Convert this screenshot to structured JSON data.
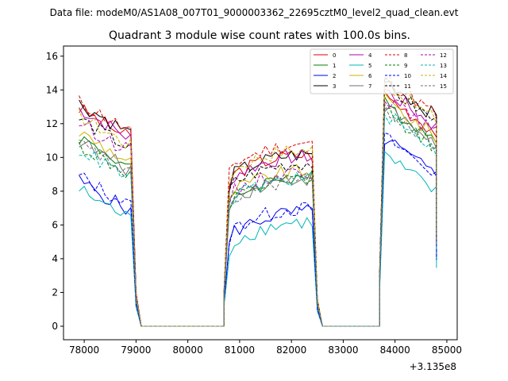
{
  "suptitle": "Data file: modeM0/AS1A08_007T01_9000003362_22695cztM0_level2_quad_clean.evt",
  "chart_data": {
    "type": "line",
    "title": "Quadrant 3 module wise count rates with 100.0s bins.",
    "xlabel": "",
    "ylabel": "",
    "x_offset_label": "+3.135e8",
    "xlim": [
      77600,
      85200
    ],
    "ylim": [
      -0.8,
      16.6
    ],
    "xticks": [
      78000,
      79000,
      80000,
      81000,
      82000,
      83000,
      84000,
      85000
    ],
    "xtick_labels": [
      "78000",
      "79000",
      "80000",
      "81000",
      "82000",
      "83000",
      "84000",
      "85000"
    ],
    "yticks": [
      0,
      2,
      4,
      6,
      8,
      10,
      12,
      14,
      16
    ],
    "ytick_labels": [
      "0",
      "2",
      "4",
      "6",
      "8",
      "10",
      "12",
      "14",
      "16"
    ],
    "grid": false,
    "legend_position": "top-right",
    "segments": [
      {
        "start": 77900,
        "end": 78900,
        "tail": [
          79000,
          79100
        ]
      },
      {
        "start": 80800,
        "end": 82400,
        "head": 80700,
        "tail": [
          82500,
          82600
        ]
      },
      {
        "start": 83800,
        "end": 84800,
        "head": 83700
      }
    ],
    "zero_after": {
      "79100": 80700,
      "82600": 83700
    },
    "series": [
      {
        "name": "0",
        "color": "#e00000",
        "dash": "solid",
        "level": [
          12.0,
          9.6,
          12.4
        ]
      },
      {
        "name": "1",
        "color": "#008000",
        "dash": "solid",
        "level": [
          10.3,
          8.3,
          11.9
        ]
      },
      {
        "name": "2",
        "color": "#0000ee",
        "dash": "solid",
        "level": [
          7.7,
          6.2,
          9.8
        ]
      },
      {
        "name": "3",
        "color": "#000000",
        "dash": "solid",
        "level": [
          12.3,
          9.6,
          13.3
        ]
      },
      {
        "name": "4",
        "color": "#b000b0",
        "dash": "solid",
        "level": [
          12.0,
          9.5,
          12.7
        ]
      },
      {
        "name": "5",
        "color": "#00b5b5",
        "dash": "solid",
        "level": [
          7.2,
          5.6,
          8.8
        ]
      },
      {
        "name": "6",
        "color": "#c8b400",
        "dash": "solid",
        "level": [
          10.6,
          8.6,
          12.1
        ]
      },
      {
        "name": "7",
        "color": "#707070",
        "dash": "solid",
        "level": [
          10.1,
          8.2,
          11.7
        ]
      },
      {
        "name": "8",
        "color": "#e00000",
        "dash": "dashed",
        "level": [
          12.4,
          10.2,
          13.4
        ]
      },
      {
        "name": "9",
        "color": "#008000",
        "dash": "dashed",
        "level": [
          9.8,
          8.1,
          11.5
        ]
      },
      {
        "name": "10",
        "color": "#0000ee",
        "dash": "dashed",
        "level": [
          8.0,
          6.4,
          9.9
        ]
      },
      {
        "name": "11",
        "color": "#000000",
        "dash": "dashed",
        "level": [
          11.4,
          9.1,
          13.0
        ]
      },
      {
        "name": "12",
        "color": "#b000b0",
        "dash": "dashed",
        "level": [
          11.2,
          8.6,
          12.3
        ]
      },
      {
        "name": "13",
        "color": "#00b5b5",
        "dash": "dashed",
        "level": [
          9.6,
          8.2,
          11.3
        ]
      },
      {
        "name": "14",
        "color": "#c8b400",
        "dash": "dashed",
        "level": [
          11.6,
          9.9,
          13.1
        ]
      },
      {
        "name": "15",
        "color": "#707070",
        "dash": "dashed",
        "level": [
          9.9,
          8.1,
          11.6
        ]
      }
    ]
  }
}
